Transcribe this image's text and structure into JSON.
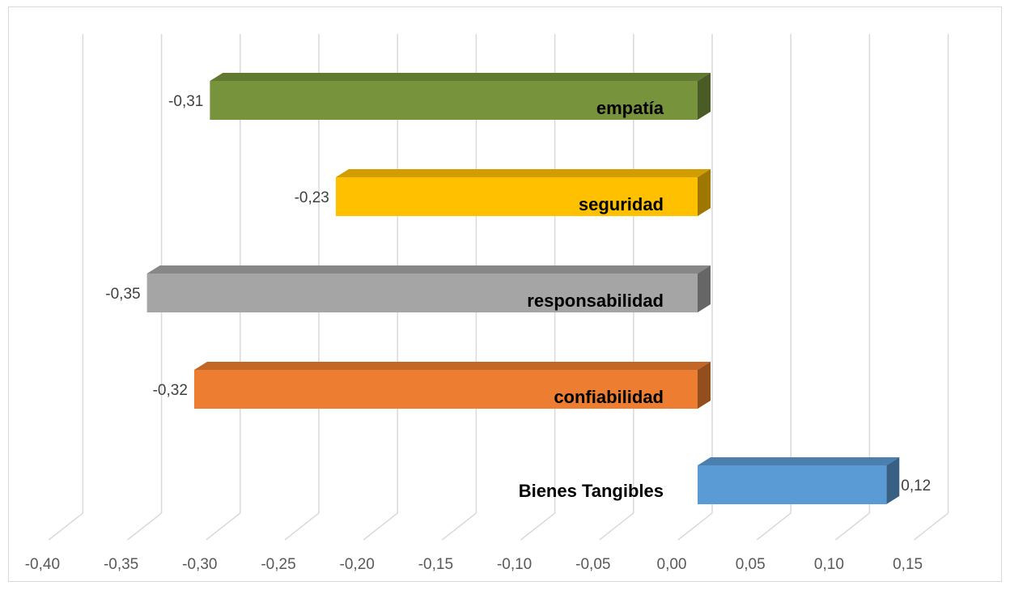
{
  "chart_data": {
    "type": "bar",
    "orientation": "horizontal",
    "style": "3d",
    "title": "",
    "xlabel": "",
    "ylabel": "",
    "xlim": [
      -0.4,
      0.15
    ],
    "x_ticks": [
      "-0,40",
      "-0,35",
      "-0,30",
      "-0,25",
      "-0,20",
      "-0,15",
      "-0,10",
      "-0,05",
      "0,00",
      "0,05",
      "0,10",
      "0,15"
    ],
    "grid": true,
    "legend": "none",
    "categories": [
      "empatía",
      "seguridad",
      "responsabilidad",
      "confiabilidad",
      "Bienes Tangibles"
    ],
    "values": [
      -0.31,
      -0.23,
      -0.35,
      -0.32,
      0.12
    ],
    "value_labels": [
      "-0,31",
      "-0,23",
      "-0,35",
      "-0,32",
      "0,12"
    ],
    "colors": [
      "#77933c",
      "#ffc000",
      "#a5a5a5",
      "#ed7d31",
      "#5b9bd5"
    ]
  }
}
